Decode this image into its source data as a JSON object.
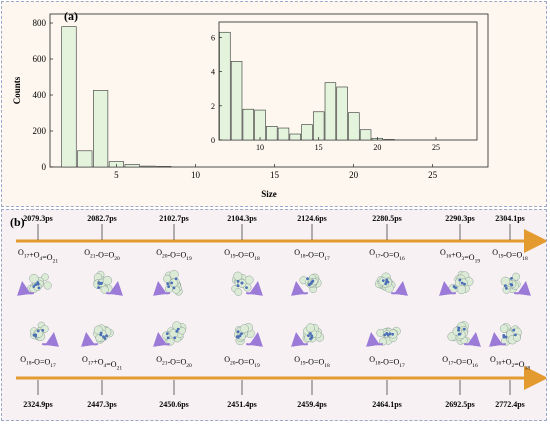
{
  "panel_a": {
    "label": "(a)",
    "chart_data": [
      {
        "type": "bar",
        "xlabel": "Size",
        "ylabel": "Counts",
        "xlim": [
          0.8,
          28.5
        ],
        "ylim": [
          0,
          850
        ],
        "xticks": [
          5,
          10,
          15,
          20,
          25
        ],
        "yticks": [
          0,
          200,
          400,
          600,
          800
        ],
        "x": [
          2,
          3,
          4,
          5,
          6,
          7,
          8
        ],
        "values": [
          780,
          90,
          425,
          30,
          14,
          5,
          3
        ],
        "bar_fill": "#e3f3dc",
        "bar_stroke": "#333333"
      },
      {
        "type": "bar",
        "subtype": "inset",
        "xlim": [
          6.5,
          28.5
        ],
        "ylim": [
          0,
          6.9
        ],
        "xticks": [
          10,
          15,
          20,
          25
        ],
        "yticks": [
          0,
          2,
          4,
          6
        ],
        "x": [
          7,
          8,
          9,
          10,
          11,
          12,
          13,
          14,
          15,
          16,
          17,
          18,
          19,
          20,
          21
        ],
        "values": [
          6.3,
          4.6,
          1.8,
          1.75,
          0.8,
          0.7,
          0.35,
          0.9,
          1.65,
          3.35,
          3.1,
          1.6,
          0.6,
          0.1,
          0.03
        ],
        "bar_fill": "#e3f3dc",
        "bar_stroke": "#333333"
      }
    ]
  },
  "panel_b": {
    "label": "(b)",
    "arrow_color": "#e39a2e",
    "top_times": [
      "2079.3ps",
      "2082.7ps",
      "2102.7ps",
      "2104.3ps",
      "2124.6ps",
      "2280.5ps",
      "2290.3ps",
      "2304.1ps"
    ],
    "top_reactions": [
      {
        "parts": [
          [
            "O",
            "17"
          ],
          [
            "+O",
            "4"
          ],
          [
            "=O",
            "21"
          ]
        ]
      },
      {
        "parts": [
          [
            "O",
            "21"
          ],
          [
            "-O=O",
            "20"
          ]
        ]
      },
      {
        "parts": [
          [
            "O",
            "20"
          ],
          [
            "-O=O",
            "19"
          ]
        ]
      },
      {
        "parts": [
          [
            "O",
            "19"
          ],
          [
            "-O=O",
            "18"
          ]
        ]
      },
      {
        "parts": [
          [
            "O",
            "18"
          ],
          [
            "-O=O",
            "17"
          ]
        ]
      },
      {
        "parts": [
          [
            "O",
            "17"
          ],
          [
            "-O=O",
            "16"
          ]
        ]
      },
      {
        "parts": [
          [
            "O",
            "16"
          ],
          [
            "+O",
            "3"
          ],
          [
            "=O",
            "19"
          ]
        ]
      },
      {
        "parts": [
          [
            "O",
            "19"
          ],
          [
            "-O=O",
            "18"
          ]
        ]
      }
    ],
    "bottom_reactions": [
      {
        "parts": [
          [
            "O",
            "18"
          ],
          [
            "-O=O",
            "17"
          ]
        ]
      },
      {
        "parts": [
          [
            "O",
            "17"
          ],
          [
            "+O",
            "4"
          ],
          [
            "=O",
            "21"
          ]
        ]
      },
      {
        "parts": [
          [
            "O",
            "21"
          ],
          [
            "-O=O",
            "20"
          ]
        ]
      },
      {
        "parts": [
          [
            "O",
            "20"
          ],
          [
            "-O=O",
            "19"
          ]
        ]
      },
      {
        "parts": [
          [
            "O",
            "19"
          ],
          [
            "-O=O",
            "18"
          ]
        ]
      },
      {
        "parts": [
          [
            "O",
            "18"
          ],
          [
            "-O=O",
            "17"
          ]
        ]
      },
      {
        "parts": [
          [
            "O",
            "17"
          ],
          [
            "-O=O",
            "16"
          ]
        ]
      },
      {
        "parts": [
          [
            "O",
            "16"
          ],
          [
            "+O",
            "2"
          ],
          [
            "=O",
            "18"
          ]
        ]
      }
    ],
    "bottom_times": [
      "2324.9ps",
      "2447.3ps",
      "2450.6ps",
      "2451.4ps",
      "2459.4ps",
      "2464.1ps",
      "2692.5ps",
      "2772.4ps"
    ]
  }
}
